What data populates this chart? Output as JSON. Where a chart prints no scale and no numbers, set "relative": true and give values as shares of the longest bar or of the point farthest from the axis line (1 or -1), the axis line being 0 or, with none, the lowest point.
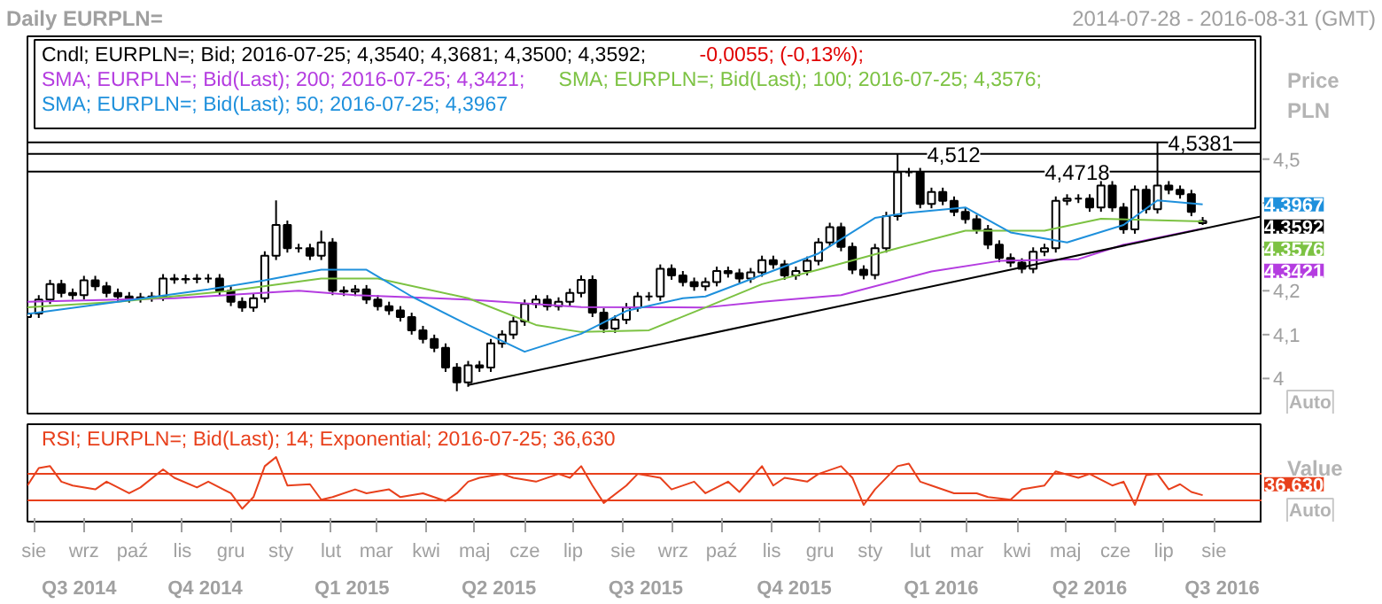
{
  "chart_data": [
    {
      "type": "candlestick",
      "title": "Daily EURPLN=",
      "subtitle": "2014-07-28 - 2016-08-31 (GMT)",
      "ylabel": "Price PLN",
      "legend": "top left",
      "tick_labels": "y",
      "xlim": [
        "2014-07-28",
        "2016-08-31"
      ],
      "ylim": [
        3.92,
        4.78
      ],
      "yticks": [
        4,
        {
          "value": 4.1,
          "label": "4,1"
        },
        {
          "value": 4.2,
          "label": "4,2"
        },
        {
          "value": 4.3,
          "label": null
        },
        {
          "value": 4.4,
          "label": null
        },
        {
          "value": 4.5,
          "label": "4,5"
        }
      ],
      "x": [
        "2014-07-28",
        "2014-08-04",
        "2014-08-11",
        "2014-08-18",
        "2014-08-25",
        "2014-09-01",
        "2014-09-08",
        "2014-09-15",
        "2014-09-22",
        "2014-09-29",
        "2014-10-06",
        "2014-10-13",
        "2014-10-20",
        "2014-10-27",
        "2014-11-03",
        "2014-11-10",
        "2014-11-17",
        "2014-11-24",
        "2014-12-01",
        "2014-12-08",
        "2014-12-15",
        "2014-12-22",
        "2014-12-29",
        "2015-01-05",
        "2015-01-12",
        "2015-01-19",
        "2015-01-26",
        "2015-02-02",
        "2015-02-09",
        "2015-02-16",
        "2015-02-23",
        "2015-03-02",
        "2015-03-09",
        "2015-03-16",
        "2015-03-23",
        "2015-03-30",
        "2015-04-06",
        "2015-04-13",
        "2015-04-20",
        "2015-04-27",
        "2015-05-04",
        "2015-05-11",
        "2015-05-18",
        "2015-05-25",
        "2015-06-01",
        "2015-06-08",
        "2015-06-15",
        "2015-06-22",
        "2015-06-29",
        "2015-07-06",
        "2015-07-13",
        "2015-07-20",
        "2015-07-27",
        "2015-08-03",
        "2015-08-10",
        "2015-08-17",
        "2015-08-24",
        "2015-08-31",
        "2015-09-07",
        "2015-09-14",
        "2015-09-21",
        "2015-09-28",
        "2015-10-05",
        "2015-10-12",
        "2015-10-19",
        "2015-10-26",
        "2015-11-02",
        "2015-11-09",
        "2015-11-16",
        "2015-11-23",
        "2015-11-30",
        "2015-12-07",
        "2015-12-14",
        "2015-12-21",
        "2015-12-28",
        "2016-01-04",
        "2016-01-11",
        "2016-01-18",
        "2016-01-25",
        "2016-02-01",
        "2016-02-08",
        "2016-02-15",
        "2016-02-22",
        "2016-02-29",
        "2016-03-07",
        "2016-03-14",
        "2016-03-21",
        "2016-03-28",
        "2016-04-04",
        "2016-04-11",
        "2016-04-18",
        "2016-04-25",
        "2016-05-02",
        "2016-05-09",
        "2016-05-16",
        "2016-05-23",
        "2016-05-30",
        "2016-06-06",
        "2016-06-13",
        "2016-06-20",
        "2016-06-27",
        "2016-07-04",
        "2016-07-11",
        "2016-07-18",
        "2016-07-25"
      ],
      "ohlc": [
        [
          4.14,
          4.158,
          4.13,
          4.148
        ],
        [
          4.148,
          4.19,
          4.138,
          4.18
        ],
        [
          4.18,
          4.225,
          4.17,
          4.215
        ],
        [
          4.215,
          4.225,
          4.185,
          4.195
        ],
        [
          4.195,
          4.205,
          4.18,
          4.19
        ],
        [
          4.19,
          4.234,
          4.18,
          4.224
        ],
        [
          4.224,
          4.234,
          4.2,
          4.21
        ],
        [
          4.21,
          4.22,
          4.185,
          4.195
        ],
        [
          4.195,
          4.205,
          4.177,
          4.187
        ],
        [
          4.187,
          4.197,
          4.173,
          4.183
        ],
        [
          4.183,
          4.195,
          4.173,
          4.185
        ],
        [
          4.185,
          4.197,
          4.175,
          4.187
        ],
        [
          4.187,
          4.238,
          4.177,
          4.228
        ],
        [
          4.228,
          4.238,
          4.216,
          4.226
        ],
        [
          4.226,
          4.237,
          4.216,
          4.227
        ],
        [
          4.227,
          4.238,
          4.217,
          4.228
        ],
        [
          4.228,
          4.238,
          4.218,
          4.228
        ],
        [
          4.228,
          4.238,
          4.19,
          4.2
        ],
        [
          4.2,
          4.21,
          4.165,
          4.175
        ],
        [
          4.175,
          4.185,
          4.152,
          4.162
        ],
        [
          4.162,
          4.193,
          4.152,
          4.183
        ],
        [
          4.183,
          4.29,
          4.173,
          4.28
        ],
        [
          4.28,
          4.406,
          4.27,
          4.35
        ],
        [
          4.35,
          4.36,
          4.287,
          4.297
        ],
        [
          4.297,
          4.307,
          4.287,
          4.297
        ],
        [
          4.297,
          4.307,
          4.27,
          4.28
        ],
        [
          4.28,
          4.337,
          4.27,
          4.31
        ],
        [
          4.31,
          4.32,
          4.19,
          4.2
        ],
        [
          4.2,
          4.21,
          4.188,
          4.198
        ],
        [
          4.198,
          4.213,
          4.188,
          4.203
        ],
        [
          4.203,
          4.213,
          4.17,
          4.18
        ],
        [
          4.18,
          4.19,
          4.155,
          4.165
        ],
        [
          4.165,
          4.175,
          4.145,
          4.155
        ],
        [
          4.155,
          4.165,
          4.13,
          4.14
        ],
        [
          4.14,
          4.15,
          4.1,
          4.11
        ],
        [
          4.11,
          4.12,
          4.08,
          4.09
        ],
        [
          4.09,
          4.1,
          4.06,
          4.07
        ],
        [
          4.07,
          4.08,
          4.015,
          4.025
        ],
        [
          4.025,
          4.035,
          3.971,
          3.991
        ],
        [
          3.991,
          4.04,
          3.981,
          4.03
        ],
        [
          4.03,
          4.04,
          4.015,
          4.025
        ],
        [
          4.025,
          4.09,
          4.015,
          4.08
        ],
        [
          4.08,
          4.11,
          4.07,
          4.1
        ],
        [
          4.1,
          4.14,
          4.09,
          4.13
        ],
        [
          4.13,
          4.18,
          4.12,
          4.17
        ],
        [
          4.17,
          4.19,
          4.16,
          4.18
        ],
        [
          4.18,
          4.19,
          4.155,
          4.165
        ],
        [
          4.165,
          4.185,
          4.155,
          4.175
        ],
        [
          4.175,
          4.205,
          4.165,
          4.195
        ],
        [
          4.195,
          4.235,
          4.185,
          4.225
        ],
        [
          4.225,
          4.235,
          4.14,
          4.15
        ],
        [
          4.15,
          4.16,
          4.104,
          4.114
        ],
        [
          4.114,
          4.144,
          4.104,
          4.134
        ],
        [
          4.134,
          4.172,
          4.124,
          4.162
        ],
        [
          4.162,
          4.197,
          4.152,
          4.187
        ],
        [
          4.187,
          4.197,
          4.177,
          4.187
        ],
        [
          4.187,
          4.26,
          4.177,
          4.25
        ],
        [
          4.25,
          4.26,
          4.225,
          4.235
        ],
        [
          4.235,
          4.245,
          4.21,
          4.22
        ],
        [
          4.22,
          4.23,
          4.2,
          4.21
        ],
        [
          4.21,
          4.23,
          4.2,
          4.22
        ],
        [
          4.22,
          4.255,
          4.21,
          4.245
        ],
        [
          4.245,
          4.255,
          4.23,
          4.24
        ],
        [
          4.24,
          4.25,
          4.218,
          4.228
        ],
        [
          4.228,
          4.252,
          4.218,
          4.242
        ],
        [
          4.242,
          4.28,
          4.232,
          4.27
        ],
        [
          4.27,
          4.28,
          4.25,
          4.26
        ],
        [
          4.26,
          4.27,
          4.225,
          4.235
        ],
        [
          4.235,
          4.255,
          4.225,
          4.245
        ],
        [
          4.245,
          4.278,
          4.235,
          4.268
        ],
        [
          4.268,
          4.32,
          4.258,
          4.31
        ],
        [
          4.31,
          4.355,
          4.3,
          4.345
        ],
        [
          4.345,
          4.355,
          4.29,
          4.3
        ],
        [
          4.3,
          4.31,
          4.238,
          4.248
        ],
        [
          4.248,
          4.258,
          4.226,
          4.236
        ],
        [
          4.236,
          4.307,
          4.226,
          4.297
        ],
        [
          4.297,
          4.38,
          4.287,
          4.37
        ],
        [
          4.37,
          4.512,
          4.36,
          4.47
        ],
        [
          4.47,
          4.48,
          4.46,
          4.47
        ],
        [
          4.47,
          4.48,
          4.388,
          4.398
        ],
        [
          4.398,
          4.435,
          4.388,
          4.425
        ],
        [
          4.425,
          4.435,
          4.395,
          4.405
        ],
        [
          4.405,
          4.415,
          4.37,
          4.38
        ],
        [
          4.38,
          4.39,
          4.353,
          4.363
        ],
        [
          4.363,
          4.373,
          4.33,
          4.34
        ],
        [
          4.34,
          4.35,
          4.295,
          4.305
        ],
        [
          4.305,
          4.315,
          4.265,
          4.275
        ],
        [
          4.275,
          4.285,
          4.254,
          4.264
        ],
        [
          4.264,
          4.274,
          4.24,
          4.25
        ],
        [
          4.25,
          4.299,
          4.24,
          4.289
        ],
        [
          4.289,
          4.307,
          4.279,
          4.297
        ],
        [
          4.297,
          4.415,
          4.287,
          4.405
        ],
        [
          4.405,
          4.42,
          4.395,
          4.41
        ],
        [
          4.41,
          4.42,
          4.4,
          4.41
        ],
        [
          4.41,
          4.42,
          4.38,
          4.39
        ],
        [
          4.39,
          4.45,
          4.38,
          4.44
        ],
        [
          4.44,
          4.45,
          4.38,
          4.39
        ],
        [
          4.39,
          4.4,
          4.33,
          4.34
        ],
        [
          4.34,
          4.44,
          4.33,
          4.43
        ],
        [
          4.43,
          4.44,
          4.376,
          4.386
        ],
        [
          4.386,
          4.5381,
          4.376,
          4.44
        ],
        [
          4.44,
          4.45,
          4.42,
          4.43
        ],
        [
          4.43,
          4.44,
          4.41,
          4.42
        ],
        [
          4.42,
          4.43,
          4.37,
          4.38
        ],
        [
          4.354,
          4.3681,
          4.35,
          4.3592
        ]
      ],
      "series": [
        {
          "type": "line",
          "name": "SMA; EURPLN=; Bid(Last);  200;  2016-07-25; 4,3421;",
          "color": "#b43ce0",
          "x": [
            "2014-07-28",
            "2014-10-27",
            "2015-01-12",
            "2015-02-16",
            "2015-04-27",
            "2015-07-06",
            "2015-09-21",
            "2015-10-26",
            "2015-12-14",
            "2016-02-08",
            "2016-03-21",
            "2016-05-09",
            "2016-06-06",
            "2016-07-25"
          ],
          "values": [
            4.175,
            4.183,
            4.2,
            4.19,
            4.18,
            4.163,
            4.162,
            4.175,
            4.19,
            4.244,
            4.268,
            4.272,
            4.305,
            4.342
          ]
        },
        {
          "type": "line",
          "name": "SMA; EURPLN=; Bid(Last);  100;  2016-07-25; 4,3576;",
          "color": "#7cc242",
          "x": [
            "2014-07-28",
            "2014-09-22",
            "2014-12-01",
            "2015-01-26",
            "2015-03-02",
            "2015-04-27",
            "2015-06-08",
            "2015-07-06",
            "2015-08-17",
            "2015-09-21",
            "2015-10-26",
            "2015-11-30",
            "2016-01-18",
            "2016-02-29",
            "2016-04-18",
            "2016-05-23",
            "2016-07-25"
          ],
          "values": [
            4.162,
            4.175,
            4.2,
            4.228,
            4.228,
            4.183,
            4.122,
            4.106,
            4.11,
            4.162,
            4.215,
            4.248,
            4.297,
            4.337,
            4.337,
            4.364,
            4.358
          ]
        },
        {
          "type": "line",
          "name": "SMA; EURPLN=; Bid(Last);  50;  2016-07-25; 4,3967",
          "color": "#1e90dc",
          "x": [
            "2014-07-28",
            "2014-09-22",
            "2014-11-17",
            "2014-12-22",
            "2015-01-26",
            "2015-02-23",
            "2015-03-23",
            "2015-04-27",
            "2015-06-01",
            "2015-07-06",
            "2015-08-03",
            "2015-09-07",
            "2015-09-21",
            "2015-10-26",
            "2015-11-30",
            "2016-01-04",
            "2016-01-25",
            "2016-02-29",
            "2016-03-28",
            "2016-05-02",
            "2016-06-06",
            "2016-06-27",
            "2016-07-25"
          ],
          "values": [
            4.147,
            4.175,
            4.203,
            4.224,
            4.248,
            4.248,
            4.187,
            4.122,
            4.061,
            4.102,
            4.154,
            4.183,
            4.187,
            4.236,
            4.285,
            4.366,
            4.378,
            4.39,
            4.333,
            4.31,
            4.35,
            4.406,
            4.397
          ]
        },
        {
          "type": "line",
          "color": "#000000",
          "x": [
            "2015-04-27",
            "2016-08-31"
          ],
          "values": [
            3.985,
            4.37
          ]
        }
      ],
      "ref_lines": [
        {
          "axis": "y",
          "value": 4.512,
          "label": "4,512",
          "color": "#000000"
        },
        {
          "axis": "y",
          "value": 4.4718,
          "label": "4,4718",
          "color": "#000000"
        },
        {
          "axis": "y",
          "value": 4.5381,
          "label": "4,5381",
          "color": "#000000"
        }
      ],
      "annotations": [
        "Cndl; EURPLN=; Bid;  2016-07-25;  4,3540;  4,3681;  4,3500;  4,3592;",
        "-0,0055;  (-0,13%);",
        {
          "text": "4,3967"
        },
        {
          "text": "4,3592"
        },
        {
          "text": "4,3576"
        },
        {
          "text": "4,3421"
        },
        {
          "text": "Auto"
        }
      ]
    },
    {
      "type": "line",
      "relative": true,
      "ylabel": "Value",
      "legend": "top left",
      "tick_labels": "x",
      "xlim": [
        "2014-07-28",
        "2016-08-31"
      ],
      "x2lim": [
        "2014-07-28",
        "2016-08-31"
      ],
      "xticks": [
        {
          "value": "2014-08-01",
          "label": "sie"
        },
        {
          "value": "2014-09-01",
          "label": "wrz"
        },
        {
          "value": "2014-10-01",
          "label": "paź"
        },
        {
          "value": "2014-11-01",
          "label": "lis"
        },
        {
          "value": "2014-12-01",
          "label": "gru"
        },
        {
          "value": "2015-01-01",
          "label": "sty"
        },
        {
          "value": "2015-02-01",
          "label": "lut"
        },
        {
          "value": "2015-03-01",
          "label": "mar"
        },
        {
          "value": "2015-04-01",
          "label": "kwi"
        },
        {
          "value": "2015-05-01",
          "label": "maj"
        },
        {
          "value": "2015-06-01",
          "label": "cze"
        },
        {
          "value": "2015-07-01",
          "label": "lip"
        },
        {
          "value": "2015-08-01",
          "label": "sie"
        },
        {
          "value": "2015-09-01",
          "label": "wrz"
        },
        {
          "value": "2015-10-01",
          "label": "paź"
        },
        {
          "value": "2015-11-01",
          "label": "lis"
        },
        {
          "value": "2015-12-01",
          "label": "gru"
        },
        {
          "value": "2016-01-01",
          "label": "sty"
        },
        {
          "value": "2016-02-01",
          "label": "lut"
        },
        {
          "value": "2016-03-01",
          "label": "mar"
        },
        {
          "value": "2016-04-01",
          "label": "kwi"
        },
        {
          "value": "2016-05-01",
          "label": "maj"
        },
        {
          "value": "2016-06-01",
          "label": "cze"
        },
        {
          "value": "2016-07-01",
          "label": "lip"
        },
        {
          "value": "2016-08-01",
          "label": "sie"
        }
      ],
      "x2ticks": [
        {
          "value": "2014-08-29",
          "label": "Q3 2014"
        },
        {
          "value": "2014-11-15",
          "label": "Q4 2014"
        },
        {
          "value": "2015-02-14",
          "label": "Q1 2015"
        },
        {
          "value": "2015-05-16",
          "label": "Q2 2015"
        },
        {
          "value": "2015-08-15",
          "label": "Q3 2015"
        },
        {
          "value": "2015-11-15",
          "label": "Q4 2015"
        },
        {
          "value": "2016-02-14",
          "label": "Q1 2016"
        },
        {
          "value": "2016-05-16",
          "label": "Q2 2016"
        },
        {
          "value": "2016-08-06",
          "label": "Q3 2016"
        }
      ],
      "series": [
        {
          "name": "RSI; EURPLN=; Bid(Last);  14; Exponential;  2016-07-25; 36,630",
          "color": "#e8401c",
          "x": [
            "2014-07-28",
            "2014-08-04",
            "2014-08-11",
            "2014-08-18",
            "2014-08-25",
            "2014-09-08",
            "2014-09-15",
            "2014-09-29",
            "2014-10-06",
            "2014-10-20",
            "2014-10-27",
            "2014-11-10",
            "2014-11-17",
            "2014-12-01",
            "2014-12-08",
            "2014-12-15",
            "2014-12-22",
            "2014-12-29",
            "2015-01-05",
            "2015-01-19",
            "2015-01-26",
            "2015-02-02",
            "2015-02-16",
            "2015-02-23",
            "2015-03-09",
            "2015-03-16",
            "2015-03-30",
            "2015-04-13",
            "2015-04-20",
            "2015-04-27",
            "2015-05-04",
            "2015-05-18",
            "2015-05-25",
            "2015-06-08",
            "2015-06-22",
            "2015-06-29",
            "2015-07-06",
            "2015-07-13",
            "2015-07-20",
            "2015-08-03",
            "2015-08-10",
            "2015-08-24",
            "2015-08-31",
            "2015-09-14",
            "2015-09-21",
            "2015-10-05",
            "2015-10-12",
            "2015-10-26",
            "2015-11-02",
            "2015-11-09",
            "2015-11-23",
            "2015-11-30",
            "2015-12-14",
            "2015-12-21",
            "2015-12-28",
            "2016-01-04",
            "2016-01-18",
            "2016-01-25",
            "2016-02-01",
            "2016-02-08",
            "2016-02-22",
            "2016-03-07",
            "2016-03-14",
            "2016-03-28",
            "2016-04-04",
            "2016-04-18",
            "2016-04-25",
            "2016-05-09",
            "2016-05-16",
            "2016-05-30",
            "2016-06-06",
            "2016-06-13",
            "2016-06-20",
            "2016-06-27",
            "2016-07-04",
            "2016-07-11",
            "2016-07-18",
            "2016-07-25"
          ],
          "values": [
            0.56,
            0.83,
            0.86,
            0.62,
            0.56,
            0.5,
            0.62,
            0.44,
            0.53,
            0.81,
            0.68,
            0.53,
            0.62,
            0.44,
            0.2,
            0.38,
            0.86,
            1,
            0.56,
            0.58,
            0.34,
            0.38,
            0.5,
            0.44,
            0.5,
            0.38,
            0.44,
            0.32,
            0.44,
            0.62,
            0.68,
            0.74,
            0.68,
            0.62,
            0.74,
            0.68,
            0.86,
            0.56,
            0.29,
            0.56,
            0.74,
            0.68,
            0.5,
            0.62,
            0.44,
            0.62,
            0.46,
            0.86,
            0.56,
            0.68,
            0.62,
            0.74,
            0.86,
            0.68,
            0.26,
            0.5,
            0.86,
            0.9,
            0.62,
            0.56,
            0.44,
            0.44,
            0.38,
            0.34,
            0.5,
            0.56,
            0.78,
            0.68,
            0.74,
            0.56,
            0.62,
            0.26,
            0.72,
            0.74,
            0.5,
            0.58,
            0.46,
            0.41
          ]
        }
      ],
      "ref_lines": [
        {
          "axis": "y",
          "value": 0.74,
          "color": "#e8401c"
        },
        {
          "axis": "y",
          "value": 0.33,
          "color": "#e8401c"
        }
      ],
      "annotations": [
        {
          "text": "36,630"
        },
        {
          "text": "Auto"
        }
      ]
    }
  ]
}
